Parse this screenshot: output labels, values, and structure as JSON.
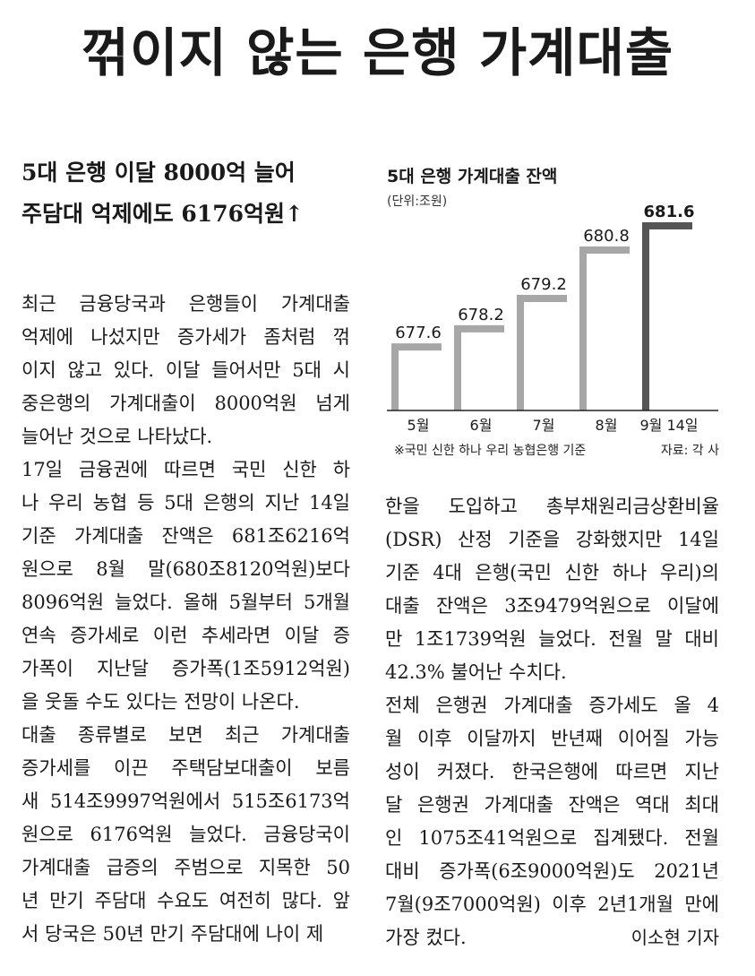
{
  "headline": "꺾이지 않는 은행 가계대출",
  "subheads": [
    "5대 은행 이달 8000억 늘어",
    "주담대 억제에도 6176억원↑"
  ],
  "left_column": [
    "최근 금융당국과 은행들이 가계대출",
    "억제에 나섰지만 증가세가 좀처럼 꺾",
    "이지 않고 있다. 이달 들어서만 5대 시",
    "중은행의 가계대출이 8000억원 넘게",
    "늘어난 것으로 나타났다.",
    " 17일 금융권에 따르면 국민 신한 하",
    "나 우리 농협 등 5대 은행의 지난 14일",
    "기준 가계대출 잔액은 681조6216억",
    "원으로 8월 말(680조8120억원)보다",
    "8096억원 늘었다. 올해 5월부터 5개월",
    "연속 증가세로 이런 추세라면 이달 증",
    "가폭이 지난달 증가폭(1조5912억원)",
    "을 웃돌 수도 있다는 전망이 나온다.",
    " 대출 종류별로 보면 최근 가계대출",
    "증가세를 이끈 주택담보대출이 보름",
    "새 514조9997억원에서 515조6173억",
    "원으로 6176억원 늘었다. 금융당국이",
    "가계대출 급증의 주범으로 지목한 50",
    "년 만기 주담대 수요도 여전히 많다. 앞",
    "서 당국은 50년 만기 주담대에 나이 제"
  ],
  "right_column": [
    "한을 도입하고 총부채원리금상환비율",
    "(DSR) 산정 기준을 강화했지만 14일",
    "기준 4대 은행(국민 신한 하나 우리)의",
    "대출 잔액은 3조9479억원으로 이달에",
    "만 1조1739억원 늘었다. 전월 말 대비",
    "42.3% 불어난 수치다.",
    " 전체 은행권 가계대출 증가세도 올 4",
    "월 이후 이달까지 반년째 이어질 가능",
    "성이 커졌다. 한국은행에 따르면 지난",
    "달 은행권 가계대출 잔액은 역대 최대",
    "인 1075조41억원으로 집계됐다. 전월",
    "대비 증가폭(6조9000억원)도 2021년",
    "7월(9조7000억원) 이후 2년1개월 만에",
    "가장 컸다."
  ],
  "byline": "이소현 기자",
  "chart_title": "5대 은행 가계대출 잔액",
  "chart_unit": "(단위:조원)",
  "chart_note": "※국민 신한 하나 우리 농협은행 기준",
  "chart_source": "자료: 각 사",
  "chart_data": {
    "type": "bar",
    "categories": [
      "5월",
      "6월",
      "7월",
      "8월",
      "9월 14일"
    ],
    "values": [
      677.6,
      678.2,
      679.2,
      680.8,
      681.6
    ],
    "labels": [
      "677.6",
      "678.2",
      "679.2",
      "680.8",
      "681.6"
    ],
    "highlight_index": 4,
    "colors": {
      "bar": "#a7a7a7",
      "highlight": "#555555",
      "axis": "#222222"
    }
  }
}
